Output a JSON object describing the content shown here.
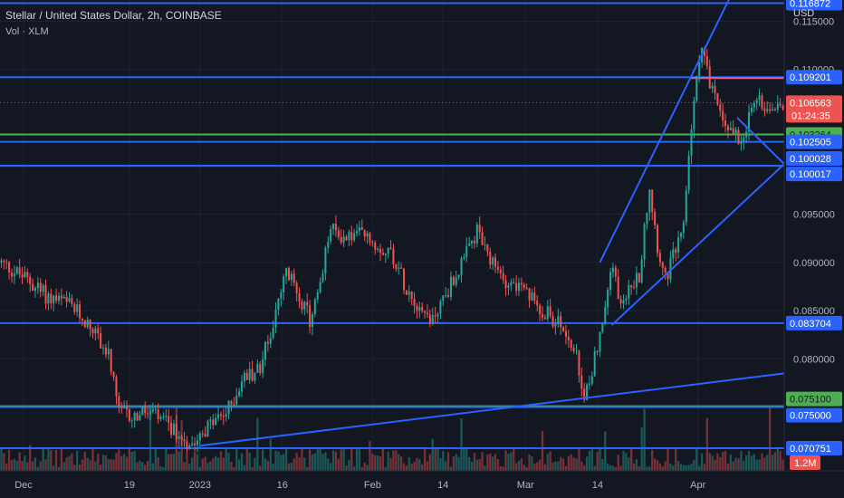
{
  "header": {
    "title": "Stellar / United States Dollar, 2h, COINBASE",
    "volume_label": "Vol · XLM",
    "currency": "USD"
  },
  "chart_data": {
    "type": "candlestick",
    "symbol": "XLM/USD",
    "interval": "2h",
    "exchange": "COINBASE",
    "y_axis": {
      "min": 0.0684,
      "max": 0.1172,
      "ticks": [
        0.115,
        0.11,
        0.095,
        0.09,
        0.085,
        0.08
      ]
    },
    "x_axis": {
      "ticks": [
        {
          "label": "Dec",
          "t": 0.03
        },
        {
          "label": "19",
          "t": 0.165
        },
        {
          "label": "2023",
          "t": 0.255
        },
        {
          "label": "16",
          "t": 0.36
        },
        {
          "label": "Feb",
          "t": 0.475
        },
        {
          "label": "14",
          "t": 0.565
        },
        {
          "label": "Mar",
          "t": 0.67
        },
        {
          "label": "14",
          "t": 0.762
        },
        {
          "label": "Apr",
          "t": 0.89
        }
      ]
    },
    "current": {
      "price": 0.106563,
      "countdown": "01:24:35"
    },
    "volume_badge": "1.2M",
    "horizontal_levels": [
      {
        "value": 0.116872,
        "color": "#2962ff"
      },
      {
        "value": 0.109201,
        "color": "#2962ff"
      },
      {
        "value": 0.103264,
        "color": "#4caf50"
      },
      {
        "value": 0.102505,
        "color": "#2962ff"
      },
      {
        "value": 0.100028,
        "color": "#2962ff"
      },
      {
        "value": 0.100017,
        "color": "#2962ff"
      },
      {
        "value": 0.083704,
        "color": "#2962ff"
      },
      {
        "value": 0.0751,
        "color": "#4caf50"
      },
      {
        "value": 0.075,
        "color": "#2962ff"
      },
      {
        "value": 0.070751,
        "color": "#2962ff"
      }
    ],
    "price_path": [
      [
        0.0,
        0.09
      ],
      [
        0.03,
        0.0885
      ],
      [
        0.06,
        0.0865
      ],
      [
        0.09,
        0.0855
      ],
      [
        0.12,
        0.083
      ],
      [
        0.14,
        0.08
      ],
      [
        0.15,
        0.0745
      ],
      [
        0.17,
        0.074
      ],
      [
        0.19,
        0.0745
      ],
      [
        0.215,
        0.073
      ],
      [
        0.24,
        0.0713
      ],
      [
        0.265,
        0.073
      ],
      [
        0.29,
        0.0745
      ],
      [
        0.31,
        0.078
      ],
      [
        0.33,
        0.079
      ],
      [
        0.35,
        0.084
      ],
      [
        0.365,
        0.089
      ],
      [
        0.38,
        0.087
      ],
      [
        0.395,
        0.084
      ],
      [
        0.41,
        0.088
      ],
      [
        0.42,
        0.0935
      ],
      [
        0.44,
        0.0925
      ],
      [
        0.46,
        0.093
      ],
      [
        0.48,
        0.0918
      ],
      [
        0.5,
        0.091
      ],
      [
        0.515,
        0.088
      ],
      [
        0.53,
        0.086
      ],
      [
        0.55,
        0.084
      ],
      [
        0.57,
        0.087
      ],
      [
        0.59,
        0.09
      ],
      [
        0.61,
        0.0935
      ],
      [
        0.62,
        0.0905
      ],
      [
        0.64,
        0.0885
      ],
      [
        0.66,
        0.0875
      ],
      [
        0.68,
        0.086
      ],
      [
        0.7,
        0.0845
      ],
      [
        0.72,
        0.083
      ],
      [
        0.735,
        0.08
      ],
      [
        0.745,
        0.0752
      ],
      [
        0.76,
        0.081
      ],
      [
        0.77,
        0.084
      ],
      [
        0.78,
        0.09
      ],
      [
        0.79,
        0.086
      ],
      [
        0.8,
        0.087
      ],
      [
        0.815,
        0.0885
      ],
      [
        0.828,
        0.098
      ],
      [
        0.838,
        0.092
      ],
      [
        0.848,
        0.088
      ],
      [
        0.86,
        0.091
      ],
      [
        0.87,
        0.0925
      ],
      [
        0.88,
        0.103
      ],
      [
        0.888,
        0.1085
      ],
      [
        0.895,
        0.113
      ],
      [
        0.905,
        0.1085
      ],
      [
        0.915,
        0.106
      ],
      [
        0.925,
        0.1045
      ],
      [
        0.935,
        0.1035
      ],
      [
        0.945,
        0.103
      ],
      [
        0.955,
        0.105
      ],
      [
        0.965,
        0.107
      ],
      [
        0.98,
        0.106
      ],
      [
        1.0,
        0.1066
      ]
    ],
    "trendlines": [
      {
        "t1": 0.255,
        "v1": 0.071,
        "t2": 1.0,
        "v2": 0.0785
      },
      {
        "t1": 0.765,
        "v1": 0.09,
        "t2": 0.94,
        "v2": 0.119
      },
      {
        "t1": 0.78,
        "v1": 0.0835,
        "t2": 1.0,
        "v2": 0.1002
      },
      {
        "t1": 0.94,
        "v1": 0.105,
        "t2": 1.0,
        "v2": 0.1002
      }
    ]
  }
}
